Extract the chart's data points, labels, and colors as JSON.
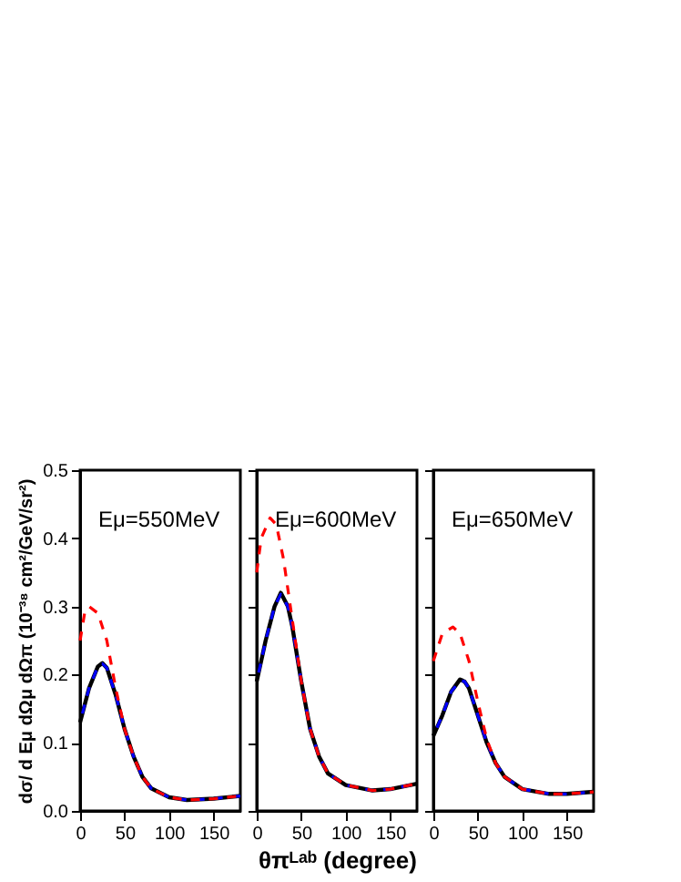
{
  "chart_data": [
    {
      "type": "line",
      "xlim": [
        0,
        180
      ],
      "xticks": [
        0,
        50,
        100,
        150
      ],
      "ylim": [
        0,
        0.5
      ],
      "yticks": [
        {
          "value": 0,
          "label": "0.0"
        },
        0.1,
        0.2,
        0.3,
        0.4,
        0.5
      ],
      "ylabel": "dσ/ d Eμ dΩμ dΩπ (10⁻³⁸ cm²/GeV/sr²)",
      "annotations": [
        "Eμ=550MeV"
      ],
      "grid": false,
      "series": [
        {
          "color": "#000000",
          "line_style": "solid",
          "x": [
            0,
            10,
            20,
            25,
            30,
            40,
            50,
            60,
            70,
            80,
            100,
            120,
            150,
            180
          ],
          "values": [
            0.13,
            0.18,
            0.212,
            0.217,
            0.21,
            0.17,
            0.12,
            0.08,
            0.05,
            0.033,
            0.02,
            0.016,
            0.018,
            0.022
          ]
        },
        {
          "color": "#0000ff",
          "line_style": "dashed",
          "x": [
            0,
            10,
            20,
            25,
            30,
            40,
            50,
            60,
            70,
            80,
            100,
            120,
            150,
            180
          ],
          "values": [
            0.13,
            0.18,
            0.212,
            0.216,
            0.21,
            0.17,
            0.12,
            0.08,
            0.05,
            0.033,
            0.02,
            0.016,
            0.018,
            0.022
          ]
        },
        {
          "color": "#ff0000",
          "line_style": "dashed",
          "x": [
            0,
            5,
            10,
            20,
            30,
            40,
            50,
            60,
            70,
            80,
            100,
            120,
            150,
            180
          ],
          "values": [
            0.25,
            0.29,
            0.3,
            0.29,
            0.25,
            0.18,
            0.12,
            0.08,
            0.05,
            0.033,
            0.02,
            0.016,
            0.018,
            0.022
          ]
        }
      ]
    },
    {
      "type": "line",
      "xlim": [
        0,
        180
      ],
      "xticks": [
        0,
        50,
        100,
        150
      ],
      "ylim": [
        0,
        0.5
      ],
      "yticks": [
        0.0,
        0.1,
        0.2,
        0.3,
        0.4,
        0.5
      ],
      "tick_labels": "x",
      "xlabel": "θπᴸᵃᵇ (degree)",
      "annotations": [
        "Eμ=600MeV"
      ],
      "grid": false,
      "series": [
        {
          "color": "#000000",
          "line_style": "solid",
          "x": [
            0,
            10,
            20,
            27,
            35,
            40,
            50,
            60,
            70,
            80,
            100,
            130,
            150,
            180
          ],
          "values": [
            0.19,
            0.25,
            0.3,
            0.32,
            0.3,
            0.27,
            0.19,
            0.12,
            0.08,
            0.055,
            0.038,
            0.03,
            0.032,
            0.04
          ]
        },
        {
          "color": "#0000ff",
          "line_style": "dashed",
          "x": [
            0,
            10,
            20,
            27,
            35,
            40,
            50,
            60,
            70,
            80,
            100,
            130,
            150,
            180
          ],
          "values": [
            0.19,
            0.25,
            0.3,
            0.318,
            0.3,
            0.27,
            0.19,
            0.12,
            0.08,
            0.055,
            0.038,
            0.03,
            0.032,
            0.04
          ]
        },
        {
          "color": "#ff0000",
          "line_style": "dashed",
          "x": [
            0,
            5,
            15,
            22,
            30,
            40,
            50,
            60,
            70,
            80,
            100,
            130,
            150,
            180
          ],
          "values": [
            0.35,
            0.4,
            0.43,
            0.42,
            0.37,
            0.28,
            0.19,
            0.12,
            0.08,
            0.055,
            0.038,
            0.03,
            0.032,
            0.04
          ]
        }
      ]
    },
    {
      "type": "line",
      "xlim": [
        0,
        180
      ],
      "xticks": [
        0,
        50,
        100,
        150
      ],
      "ylim": [
        0,
        0.5
      ],
      "yticks": [
        0.0,
        0.1,
        0.2,
        0.3,
        0.4,
        0.5
      ],
      "tick_labels": "x",
      "annotations": [
        "Eμ=650MeV"
      ],
      "grid": false,
      "series": [
        {
          "color": "#000000",
          "line_style": "solid",
          "x": [
            0,
            10,
            20,
            30,
            35,
            40,
            50,
            60,
            70,
            80,
            100,
            130,
            150,
            180
          ],
          "values": [
            0.11,
            0.14,
            0.175,
            0.193,
            0.19,
            0.18,
            0.14,
            0.1,
            0.07,
            0.05,
            0.032,
            0.025,
            0.025,
            0.028
          ]
        },
        {
          "color": "#0000ff",
          "line_style": "dashed",
          "x": [
            0,
            10,
            20,
            30,
            35,
            40,
            50,
            60,
            70,
            80,
            100,
            130,
            150,
            180
          ],
          "values": [
            0.11,
            0.14,
            0.175,
            0.191,
            0.19,
            0.18,
            0.14,
            0.1,
            0.07,
            0.05,
            0.032,
            0.025,
            0.025,
            0.028
          ]
        },
        {
          "color": "#ff0000",
          "line_style": "dashed",
          "x": [
            0,
            10,
            22,
            30,
            40,
            50,
            60,
            70,
            80,
            100,
            130,
            150,
            180
          ],
          "values": [
            0.22,
            0.26,
            0.27,
            0.26,
            0.22,
            0.16,
            0.105,
            0.07,
            0.05,
            0.032,
            0.025,
            0.025,
            0.028
          ]
        }
      ]
    }
  ]
}
